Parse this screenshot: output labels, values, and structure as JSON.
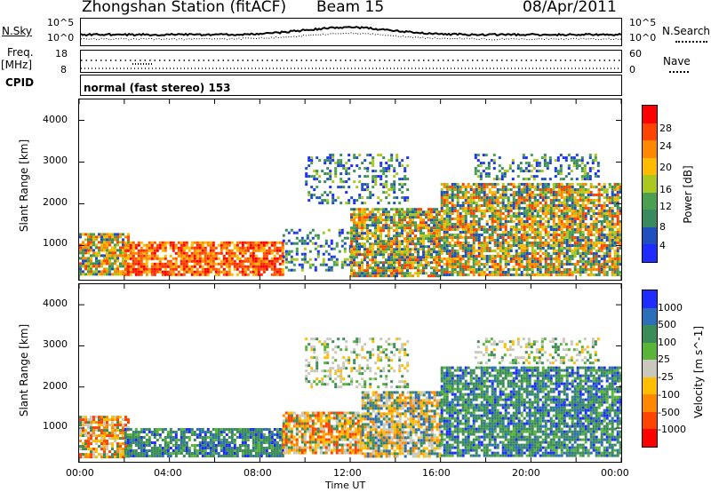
{
  "header": {
    "title": "Zhongshan Station (fitACF)",
    "beam": "Beam 15",
    "date": "08/Apr/2011"
  },
  "sky_panel": {
    "left_label": "N.Sky",
    "right_label": "N.Search",
    "left_ticks": [
      "10^5",
      "10^0"
    ],
    "right_ticks": [
      "10^5",
      "10^0"
    ]
  },
  "freq_panel": {
    "left_label_1": "Freq.",
    "left_label_2": "[MHz]",
    "right_label": "Nave",
    "left_ticks": [
      "18",
      "8"
    ],
    "right_ticks": [
      "60",
      "0"
    ]
  },
  "cpid_panel": {
    "label": "CPID",
    "text": "normal (fast stereo) 153"
  },
  "x_axis": {
    "ticks": [
      "00:00",
      "04:00",
      "08:00",
      "12:00",
      "16:00",
      "20:00",
      "00:00"
    ],
    "label": "Time UT"
  },
  "chart_data": [
    {
      "type": "heatmap",
      "title": "",
      "ylabel": "Slant Range [km]",
      "ylim": [
        180,
        4500
      ],
      "yticks": [
        "4000",
        "3000",
        "2000",
        "1000"
      ],
      "xlim_hours": [
        0,
        24
      ],
      "colorbar_label": "Power [dB]",
      "colorbar_ticks": [
        "28",
        "24",
        "20",
        "16",
        "12",
        "8",
        "4"
      ],
      "colorbar_colors": [
        "#ff0000",
        "#ff4400",
        "#ff8800",
        "#ffbb00",
        "#aac820",
        "#4aa050",
        "#3a8a60",
        "#2050c0",
        "#1e2cff"
      ],
      "regions": [
        {
          "t0": 0.0,
          "t1": 2.2,
          "r0": 300,
          "r1": 1300,
          "level": "mid"
        },
        {
          "t0": 2.0,
          "t1": 9.0,
          "r0": 300,
          "r1": 1100,
          "level": "high"
        },
        {
          "t0": 9.0,
          "t1": 12.0,
          "r0": 400,
          "r1": 1400,
          "level": "low"
        },
        {
          "t0": 12.0,
          "t1": 16.0,
          "r0": 300,
          "r1": 1900,
          "level": "mid"
        },
        {
          "t0": 10.0,
          "t1": 14.5,
          "r0": 2000,
          "r1": 3200,
          "level": "low"
        },
        {
          "t0": 16.0,
          "t1": 24.0,
          "r0": 300,
          "r1": 2500,
          "level": "mid"
        },
        {
          "t0": 17.5,
          "t1": 23.0,
          "r0": 2600,
          "r1": 3200,
          "level": "low"
        }
      ]
    },
    {
      "type": "heatmap",
      "title": "",
      "ylabel": "Slant Range [km]",
      "ylim": [
        180,
        4500
      ],
      "yticks": [
        "4000",
        "3000",
        "2000",
        "1000"
      ],
      "xlim_hours": [
        0,
        24
      ],
      "colorbar_label": "Velocity [m s^-1]",
      "colorbar_ticks": [
        "1000",
        "500",
        "100",
        "25",
        "-25",
        "-100",
        "-500",
        "-1000"
      ],
      "colorbar_colors": [
        "#1e2cff",
        "#2d6eb8",
        "#3c8c5a",
        "#5ab437",
        "#c8c8bc",
        "#ffbe00",
        "#ff8800",
        "#ff4400",
        "#ff0000"
      ],
      "regions": [
        {
          "t0": 0.0,
          "t1": 2.2,
          "r0": 300,
          "r1": 1300,
          "level": "neg"
        },
        {
          "t0": 2.0,
          "t1": 9.0,
          "r0": 300,
          "r1": 1000,
          "level": "pos"
        },
        {
          "t0": 9.0,
          "t1": 12.5,
          "r0": 400,
          "r1": 1400,
          "level": "neg"
        },
        {
          "t0": 12.5,
          "t1": 16.0,
          "r0": 300,
          "r1": 1900,
          "level": "mixed"
        },
        {
          "t0": 10.0,
          "t1": 14.5,
          "r0": 2000,
          "r1": 3200,
          "level": "zero"
        },
        {
          "t0": 16.0,
          "t1": 24.0,
          "r0": 300,
          "r1": 2500,
          "level": "pos"
        },
        {
          "t0": 17.5,
          "t1": 23.0,
          "r0": 2600,
          "r1": 3200,
          "level": "zero"
        }
      ]
    }
  ]
}
